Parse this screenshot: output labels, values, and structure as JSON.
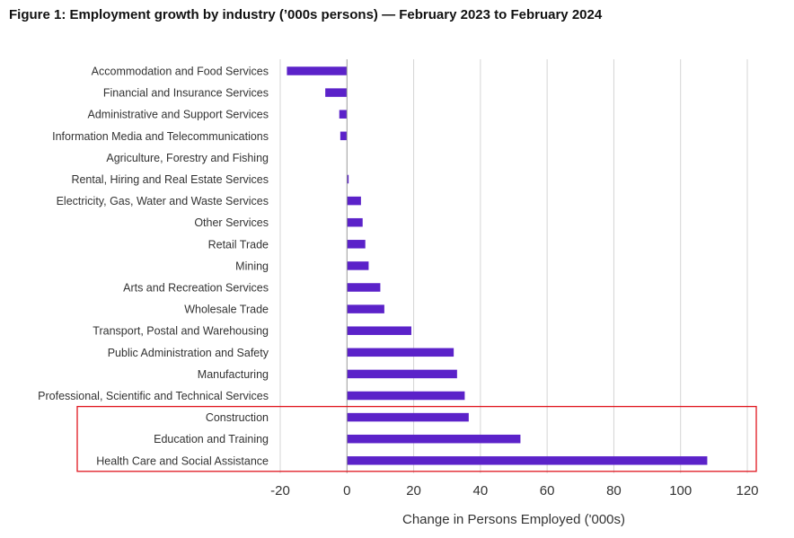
{
  "chart_data": {
    "type": "bar",
    "orientation": "horizontal",
    "title": "Figure 1: Employment growth by industry (’000s persons) — February 2023 to February 2024",
    "xlabel": "Change in Persons Employed ('000s)",
    "ylabel": "",
    "xlim": [
      -20,
      120
    ],
    "xticks": [
      -20,
      0,
      20,
      40,
      60,
      80,
      100,
      120
    ],
    "grid": "vertical",
    "bar_color": "#5b22c9",
    "highlight_color": "#e0161e",
    "highlighted_categories": [
      "Construction",
      "Education and Training",
      "Health Care and Social Assistance"
    ],
    "categories": [
      "Accommodation and Food Services",
      "Financial and Insurance Services",
      "Administrative and Support Services",
      "Information Media and Telecommunications",
      "Agriculture, Forestry and Fishing",
      "Rental, Hiring and Real Estate Services",
      "Electricity, Gas, Water and Waste Services",
      "Other Services",
      "Retail Trade",
      "Mining",
      "Arts and Recreation Services",
      "Wholesale Trade",
      "Transport, Postal and Warehousing",
      "Public Administration and Safety",
      "Manufacturing",
      "Professional, Scientific and Technical Services",
      "Construction",
      "Education and Training",
      "Health Care and Social Assistance"
    ],
    "values": [
      -18,
      -6.5,
      -2.3,
      -2,
      0,
      0.5,
      4.2,
      4.7,
      5.5,
      6.5,
      10,
      11.2,
      19.3,
      32,
      33,
      35.3,
      36.5,
      52,
      108
    ]
  }
}
